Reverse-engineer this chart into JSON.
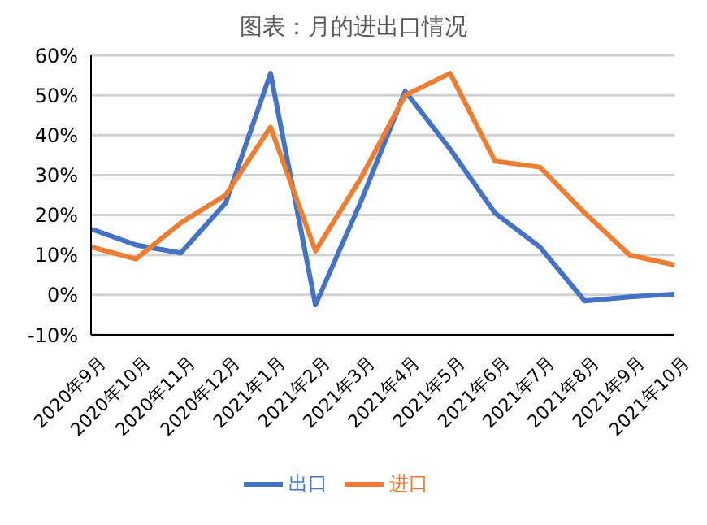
{
  "chart_data": {
    "type": "line",
    "title": "图表：月的进出口情况",
    "categories": [
      "2020年9月",
      "2020年10月",
      "2020年11月",
      "2020年12月",
      "2021年1月",
      "2021年2月",
      "2021年3月",
      "2021年4月",
      "2021年5月",
      "2021年6月",
      "2021年7月",
      "2021年8月",
      "2021年9月",
      "2021年10月"
    ],
    "series": [
      {
        "name": "出口",
        "color": "#4472c4",
        "values": [
          16.5,
          12.5,
          10.5,
          23,
          55.5,
          -2.5,
          23,
          51,
          36.5,
          20.5,
          12,
          -1.5,
          -0.5,
          0.2
        ]
      },
      {
        "name": "进口",
        "color": "#ed7d31",
        "values": [
          12,
          9,
          18,
          25,
          42,
          11,
          29,
          50,
          55.5,
          33.5,
          32,
          20.5,
          10,
          7.5
        ]
      }
    ],
    "ylim": [
      -10,
      60
    ],
    "yticks": [
      {
        "value": -10,
        "label": "-10%"
      },
      {
        "value": 0,
        "label": "0%"
      },
      {
        "value": 10,
        "label": "10%"
      },
      {
        "value": 20,
        "label": "20%"
      },
      {
        "value": 30,
        "label": "30%"
      },
      {
        "value": 40,
        "label": "40%"
      },
      {
        "value": 50,
        "label": "50%"
      },
      {
        "value": 60,
        "label": "60%"
      }
    ],
    "grid": "y",
    "legend": "bottom",
    "marker": "none",
    "line_style": "solid"
  }
}
